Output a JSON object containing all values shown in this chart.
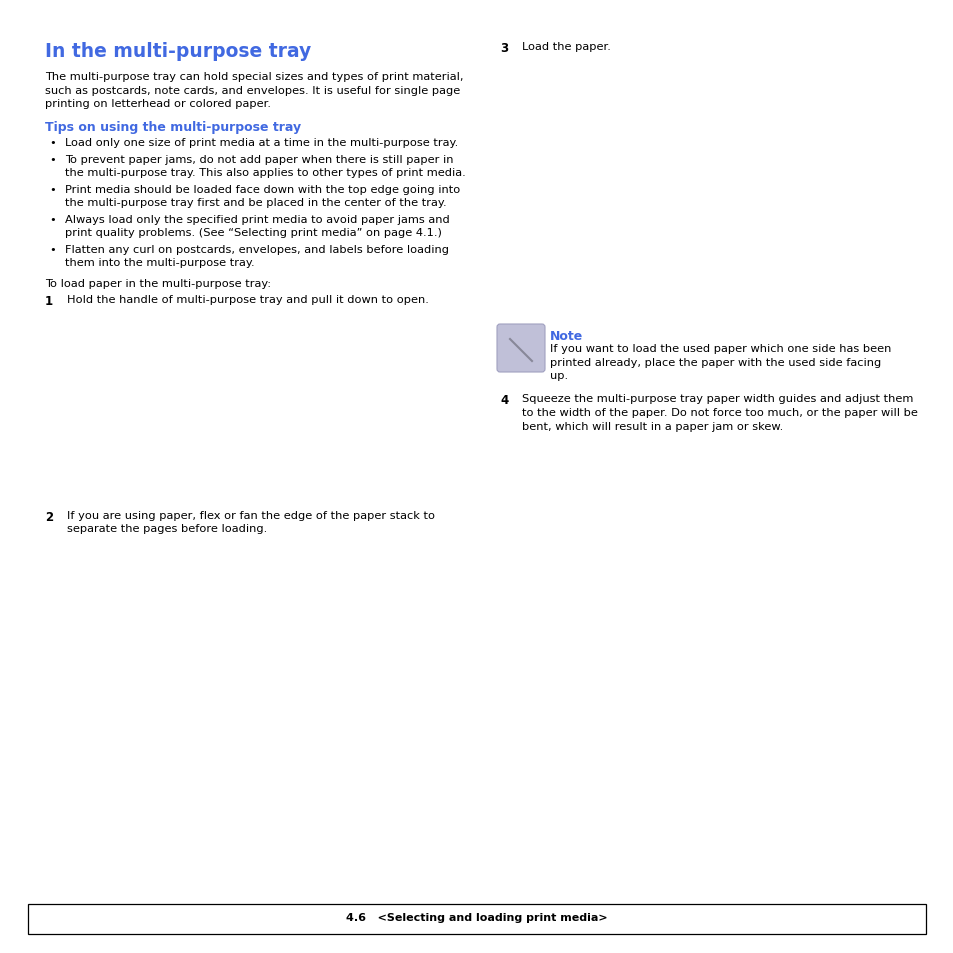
{
  "title": "In the multi-purpose tray",
  "title_color": "#4169E1",
  "subtitle": "Tips on using the multi-purpose tray",
  "subtitle_color": "#4169E1",
  "body_text_lines": [
    "The multi-purpose tray can hold special sizes and types of print material,",
    "such as postcards, note cards, and envelopes. It is useful for single page",
    "printing on letterhead or colored paper."
  ],
  "tips": [
    "Load only one size of print media at a time in the multi-purpose tray.",
    "To prevent paper jams, do not add paper when there is still paper in\nthe multi-purpose tray. This also applies to other types of print media.",
    "Print media should be loaded face down with the top edge going into\nthe multi-purpose tray first and be placed in the center of the tray.",
    "Always load only the specified print media to avoid paper jams and\nprint quality problems. (See “Selecting print media” on page 4.1.)",
    "Flatten any curl on postcards, envelopes, and labels before loading\nthem into the multi-purpose tray."
  ],
  "load_intro": "To load paper in the multi-purpose tray:",
  "step1_num": "1",
  "step1_text": "Hold the handle of multi-purpose tray and pull it down to open.",
  "step2_num": "2",
  "step2_text": "If you are using paper, flex or fan the edge of the paper stack to\nseparate the pages before loading.",
  "step3_num": "3",
  "step3_text": "Load the paper.",
  "step4_num": "4",
  "step4_text": "Squeeze the multi-purpose tray paper width guides and adjust them\nto the width of the paper. Do not force too much, or the paper will be\nbent, which will result in a paper jam or skew.",
  "note_title": "Note",
  "note_title_color": "#4169E1",
  "note_text_lines": [
    "If you want to load the used paper which one side has been",
    "printed already, place the paper with the used side facing",
    "up."
  ],
  "footer_text": "4.6   <Selecting and loading print media>",
  "bg_color": "#ffffff",
  "text_color": "#000000",
  "note_icon_color": "#C0C0D8",
  "font_size_title": 13.5,
  "font_size_subtitle": 9.0,
  "font_size_body": 8.2,
  "font_size_step_num": 8.5,
  "font_size_footer": 8.0
}
